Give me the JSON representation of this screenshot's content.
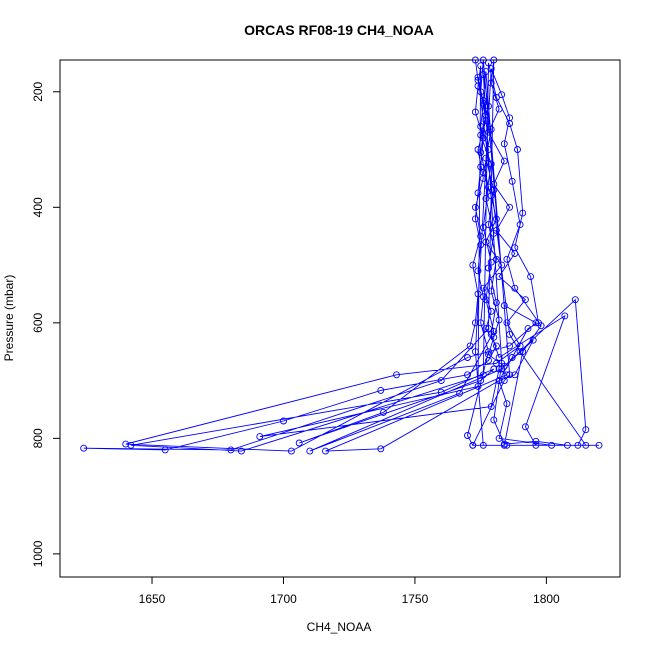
{
  "chart_data": {
    "type": "line",
    "title": "ORCAS RF08-19 CH4_NOAA",
    "xlabel": "CH4_NOAA",
    "ylabel": "Pressure (mbar)",
    "xlim": [
      1615,
      1828
    ],
    "ylim": [
      1040,
      145
    ],
    "y_reversed": true,
    "x_ticks": [
      1650,
      1700,
      1750,
      1800
    ],
    "y_ticks": [
      200,
      400,
      600,
      800,
      1000
    ],
    "grid": false,
    "series_color": "#0000ff",
    "markers": "open-circle",
    "series": [
      {
        "points": [
          [
            1773,
            145
          ],
          [
            1774,
            180
          ],
          [
            1776,
            220
          ],
          [
            1775,
            260
          ],
          [
            1778,
            300
          ],
          [
            1776,
            340
          ],
          [
            1779,
            380
          ],
          [
            1781,
            420
          ],
          [
            1777,
            460
          ],
          [
            1783,
            500
          ],
          [
            1776,
            540
          ],
          [
            1779,
            580
          ],
          [
            1777,
            610
          ],
          [
            1781,
            640
          ],
          [
            1778,
            665
          ],
          [
            1770,
            690
          ],
          [
            1737,
            717
          ],
          [
            1700,
            770
          ],
          [
            1655,
            820
          ],
          [
            1624,
            817
          ],
          [
            1680,
            820
          ],
          [
            1760,
            700
          ],
          [
            1778,
            610
          ],
          [
            1780,
            145
          ],
          [
            1779,
            185
          ],
          [
            1782,
            230
          ],
          [
            1778,
            270
          ],
          [
            1784,
            320
          ],
          [
            1780,
            360
          ],
          [
            1786,
            400
          ],
          [
            1781,
            440
          ],
          [
            1788,
            480
          ],
          [
            1782,
            520
          ],
          [
            1792,
            560
          ],
          [
            1785,
            600
          ],
          [
            1790,
            640
          ],
          [
            1781,
            670
          ],
          [
            1743,
            690
          ],
          [
            1640,
            810
          ],
          [
            1703,
            822
          ],
          [
            1770,
            660
          ],
          [
            1786,
            640
          ],
          [
            1796,
            600
          ],
          [
            1784,
            570
          ],
          [
            1776,
            145
          ],
          [
            1775,
            200
          ],
          [
            1777,
            250
          ],
          [
            1774,
            300
          ],
          [
            1776,
            350
          ],
          [
            1773,
            400
          ],
          [
            1775,
            450
          ],
          [
            1772,
            500
          ],
          [
            1774,
            550
          ],
          [
            1773,
            600
          ],
          [
            1771,
            640
          ],
          [
            1738,
            755
          ],
          [
            1706,
            808
          ],
          [
            1775,
            700
          ],
          [
            1780,
            680
          ],
          [
            1760,
            720
          ],
          [
            1642,
            812
          ],
          [
            1684,
            822
          ],
          [
            1776,
            690
          ],
          [
            1778,
            150
          ],
          [
            1781,
            210
          ],
          [
            1786,
            255
          ],
          [
            1789,
            300
          ],
          [
            1791,
            410
          ],
          [
            1788,
            470
          ],
          [
            1794,
            520
          ],
          [
            1797,
            600
          ],
          [
            1793,
            610
          ],
          [
            1787,
            660
          ],
          [
            1782,
            700
          ],
          [
            1737,
            818
          ],
          [
            1716,
            822
          ],
          [
            1785,
            690
          ],
          [
            1782,
            680
          ],
          [
            1779,
            745
          ],
          [
            1691,
            797
          ],
          [
            1774,
            710
          ],
          [
            1775,
            155
          ],
          [
            1774,
            190
          ],
          [
            1773,
            235
          ],
          [
            1776,
            280
          ],
          [
            1775,
            330
          ],
          [
            1774,
            375
          ],
          [
            1773,
            420
          ],
          [
            1775,
            465
          ],
          [
            1774,
            510
          ],
          [
            1776,
            555
          ],
          [
            1775,
            600
          ],
          [
            1778,
            650
          ],
          [
            1770,
            795
          ],
          [
            1772,
            812
          ],
          [
            1776,
            812
          ],
          [
            1773,
            650
          ],
          [
            1779,
            160
          ],
          [
            1783,
            205
          ],
          [
            1786,
            245
          ],
          [
            1784,
            290
          ],
          [
            1787,
            355
          ],
          [
            1790,
            430
          ],
          [
            1785,
            490
          ],
          [
            1788,
            540
          ],
          [
            1798,
            605
          ],
          [
            1791,
            650
          ],
          [
            1784,
            812
          ],
          [
            1772,
            812
          ],
          [
            1784,
            700
          ],
          [
            1786,
            690
          ],
          [
            1777,
            165
          ],
          [
            1776,
            215
          ],
          [
            1779,
            265
          ],
          [
            1777,
            315
          ],
          [
            1780,
            370
          ],
          [
            1778,
            430
          ],
          [
            1781,
            490
          ],
          [
            1779,
            545
          ],
          [
            1782,
            595
          ],
          [
            1780,
            625
          ],
          [
            1778,
            655
          ],
          [
            1784,
            675
          ],
          [
            1811,
            560
          ],
          [
            1815,
            785
          ],
          [
            1812,
            812
          ],
          [
            1820,
            812
          ],
          [
            1808,
            812
          ],
          [
            1796,
            805
          ],
          [
            1784,
            810
          ],
          [
            1780,
            768
          ],
          [
            1783,
            670
          ],
          [
            1776,
            170
          ],
          [
            1778,
            225
          ],
          [
            1775,
            275
          ],
          [
            1779,
            325
          ],
          [
            1777,
            385
          ],
          [
            1780,
            445
          ],
          [
            1778,
            505
          ],
          [
            1781,
            565
          ],
          [
            1779,
            620
          ],
          [
            1782,
            660
          ],
          [
            1807,
            588
          ],
          [
            1792,
            780
          ],
          [
            1796,
            812
          ],
          [
            1815,
            812
          ],
          [
            1790,
            650
          ],
          [
            1786,
            620
          ],
          [
            1774,
            175
          ],
          [
            1777,
            240
          ],
          [
            1775,
            305
          ],
          [
            1778,
            365
          ],
          [
            1776,
            435
          ],
          [
            1779,
            495
          ],
          [
            1777,
            560
          ],
          [
            1780,
            615
          ],
          [
            1767,
            722
          ],
          [
            1710,
            822
          ],
          [
            1783,
            680
          ],
          [
            1795,
            630
          ],
          [
            1788,
            690
          ],
          [
            1782,
            700
          ],
          [
            1785,
            740
          ],
          [
            1782,
            800
          ],
          [
            1802,
            812
          ],
          [
            1785,
            812
          ]
        ]
      }
    ]
  }
}
